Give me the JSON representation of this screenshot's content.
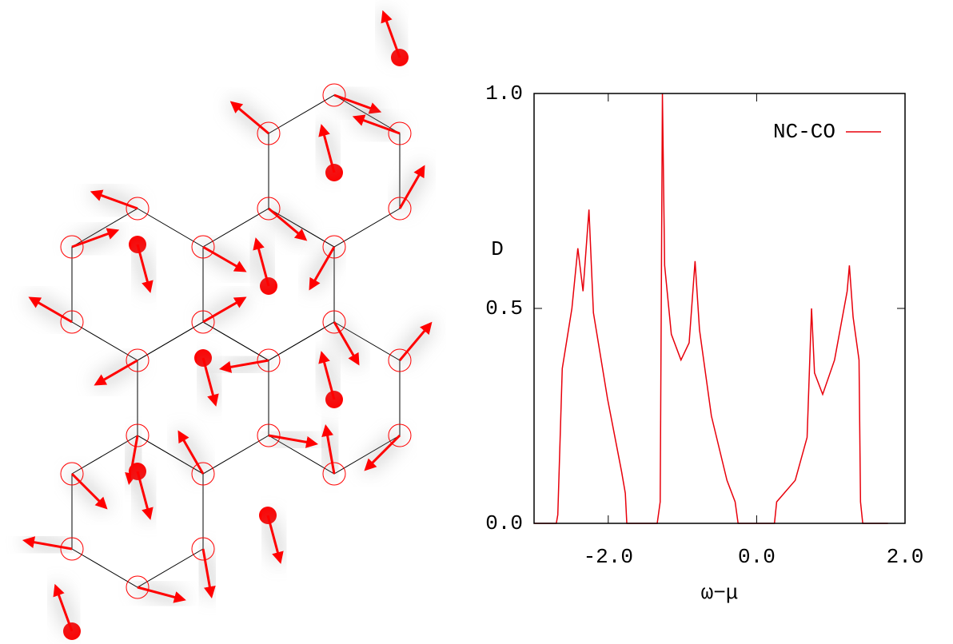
{
  "chart_data": {
    "type": "line",
    "x_label": "ω−μ",
    "y_label": "D",
    "x": [
      -3.0,
      -2.7,
      -2.68,
      -2.62,
      -2.49,
      -2.41,
      -2.34,
      -2.26,
      -2.2,
      -2.01,
      -1.82,
      -1.77,
      -1.75,
      -1.34,
      -1.3,
      -1.27,
      -1.24,
      -1.15,
      -1.02,
      -0.91,
      -0.83,
      -0.77,
      -0.61,
      -0.4,
      -0.29,
      -0.25,
      0.24,
      0.27,
      0.52,
      0.68,
      0.74,
      0.78,
      0.89,
      1.05,
      1.22,
      1.25,
      1.3,
      1.38,
      1.4,
      1.43,
      1.77
    ],
    "series": [
      {
        "name": "NC-CO",
        "color": "#e8000b",
        "values": [
          0,
          0,
          0.02,
          0.36,
          0.5,
          0.64,
          0.54,
          0.73,
          0.49,
          0.29,
          0.12,
          0.07,
          0,
          0,
          0.05,
          1.0,
          0.6,
          0.44,
          0.38,
          0.42,
          0.61,
          0.45,
          0.25,
          0.1,
          0.05,
          0,
          0,
          0.05,
          0.1,
          0.2,
          0.5,
          0.35,
          0.3,
          0.38,
          0.54,
          0.6,
          0.48,
          0.38,
          0.05,
          0,
          0
        ]
      }
    ],
    "xlim": [
      -3,
      2
    ],
    "ylim": [
      0,
      1
    ],
    "xticks": [
      {
        "value": -2,
        "label": "-2.0"
      },
      {
        "value": 0,
        "label": "0.0"
      },
      {
        "value": 2,
        "label": "2.0"
      }
    ],
    "yticks": [
      {
        "value": 0,
        "label": "0.0"
      },
      {
        "value": 0.5,
        "label": "0.5"
      },
      {
        "value": 1,
        "label": "1.0"
      }
    ],
    "legend": "upper right"
  }
}
